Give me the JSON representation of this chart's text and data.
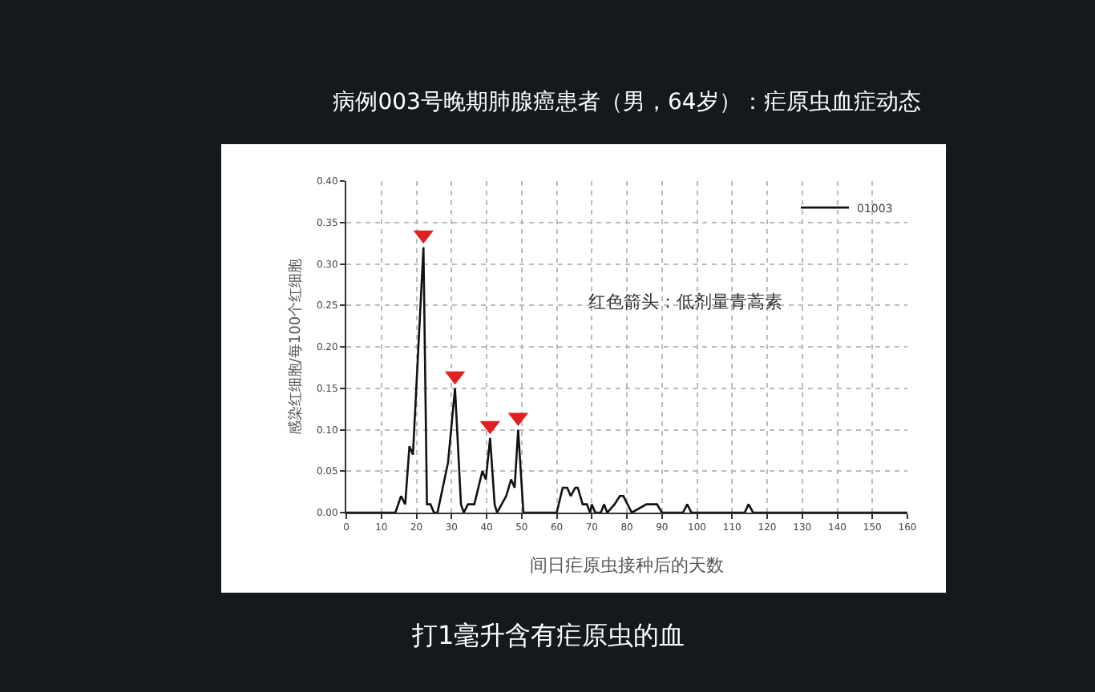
{
  "chart_data": {
    "type": "line",
    "title": "病例003号晚期肺腺癌患者（男，64岁）：疟原虫血症动态",
    "xlabel": "间日疟原虫接种后的天数",
    "ylabel": "感染红细胞/每100个红细胞",
    "x": [
      0,
      14,
      15.6,
      16.8,
      18,
      19,
      22,
      23,
      24,
      25,
      26,
      28,
      29,
      31,
      32.7,
      33.5,
      34.7,
      36.5,
      38.8,
      39.8,
      41,
      42.3,
      43,
      45.6,
      47,
      48,
      49,
      50.5,
      59,
      60,
      61.7,
      63,
      64,
      65.3,
      66,
      67.4,
      68.6,
      69.5,
      70,
      71,
      72.6,
      73.5,
      74.4,
      76.5,
      78,
      79,
      81.4,
      85.6,
      88.6,
      90,
      96,
      97.2,
      98.4,
      113.6,
      114.7,
      116,
      160
    ],
    "series": [
      {
        "name": "01003",
        "color": "#111111",
        "values": [
          0,
          0,
          0.02,
          0.01,
          0.08,
          0.07,
          0.32,
          0.01,
          0.01,
          0,
          0,
          0.04,
          0.06,
          0.15,
          0.01,
          0,
          0.01,
          0.01,
          0.05,
          0.04,
          0.09,
          0.01,
          0,
          0.02,
          0.04,
          0.03,
          0.1,
          0,
          0,
          0,
          0.03,
          0.03,
          0.02,
          0.03,
          0.03,
          0.01,
          0.01,
          0,
          0.01,
          0,
          0,
          0.01,
          0,
          0.01,
          0.02,
          0.02,
          0,
          0.01,
          0.01,
          0,
          0,
          0.01,
          0,
          0,
          0.01,
          0,
          0
        ]
      },
      {
        "type": "scatter",
        "color": "#e02020",
        "x": [
          22,
          31,
          41,
          49
        ],
        "values": [
          0.335,
          0.165,
          0.105,
          0.115
        ]
      }
    ],
    "xlim": [
      0,
      160
    ],
    "xticks": [
      0,
      10,
      20,
      30,
      40,
      50,
      60,
      70,
      80,
      90,
      100,
      110,
      120,
      130,
      140,
      150,
      160
    ],
    "ylim": [
      0,
      0.4
    ],
    "yticks": [
      {
        "value": 0,
        "label": "0.00"
      },
      0.05,
      {
        "value": 0.1,
        "label": "0.10"
      },
      0.15,
      {
        "value": 0.2,
        "label": "0.20"
      },
      0.25,
      {
        "value": 0.3,
        "label": "0.30"
      },
      0.35,
      {
        "value": 0.4,
        "label": "0.40"
      }
    ],
    "grid": true,
    "legend": "top right",
    "line_style": "solid",
    "annotations": [
      "红色箭头：低剂量青蒿素",
      "打1毫升含有疟原虫的血"
    ]
  }
}
